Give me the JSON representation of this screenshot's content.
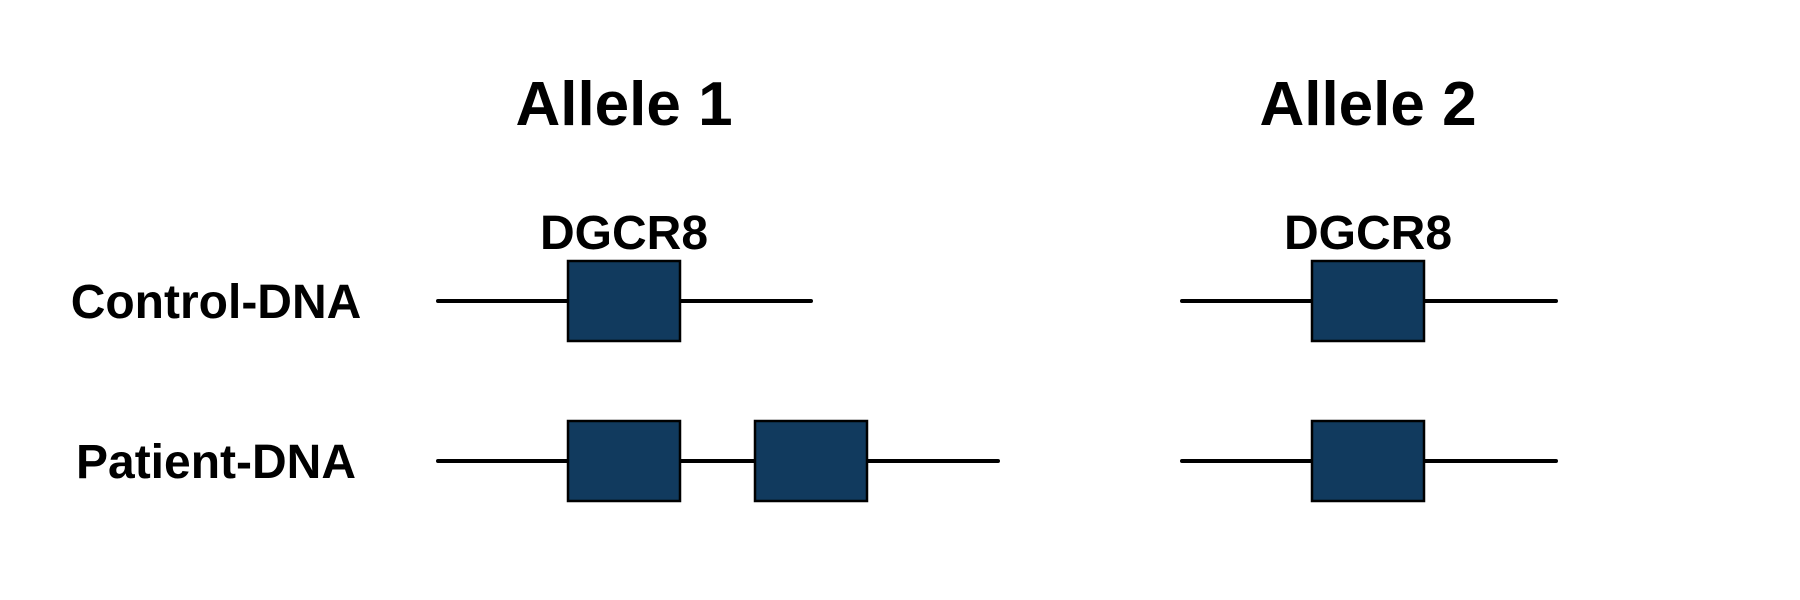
{
  "colors": {
    "gene_fill": "#113a5e",
    "line": "#000000",
    "text": "#000000"
  },
  "alleles": [
    {
      "title": "Allele 1",
      "gene_label": "DGCR8"
    },
    {
      "title": "Allele 2",
      "gene_label": "DGCR8"
    }
  ],
  "rows": [
    {
      "label": "Control-DNA",
      "copies": [
        1,
        1
      ]
    },
    {
      "label": "Patient-DNA",
      "copies": [
        2,
        1
      ]
    }
  ]
}
